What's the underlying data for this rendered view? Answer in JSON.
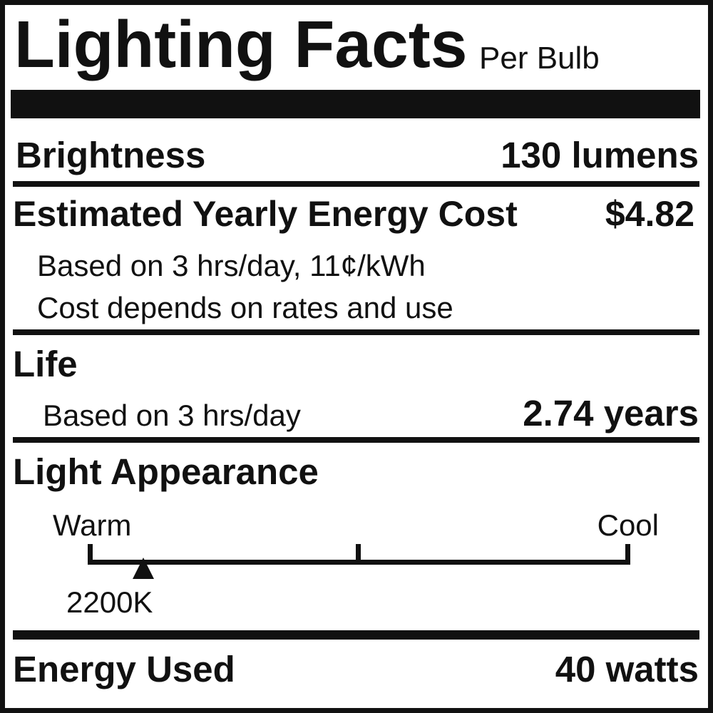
{
  "header": {
    "title": "Lighting Facts",
    "subtitle": "Per Bulb"
  },
  "brightness": {
    "label": "Brightness",
    "value": "130 lumens"
  },
  "cost": {
    "label": "Estimated Yearly Energy Cost",
    "value": "$4.82",
    "basis": "Based on 3 hrs/day, 11¢/kWh",
    "note": "Cost depends on rates and use"
  },
  "life": {
    "label": "Life",
    "basis": "Based on 3 hrs/day",
    "value": "2.74 years"
  },
  "appearance": {
    "label": "Light Appearance",
    "warm_label": "Warm",
    "cool_label": "Cool",
    "value": "2200K",
    "scale_position": 0.1
  },
  "energy": {
    "label": "Energy Used",
    "value": "40 watts"
  },
  "colors": {
    "ink": "#111111",
    "background": "#ffffff"
  }
}
